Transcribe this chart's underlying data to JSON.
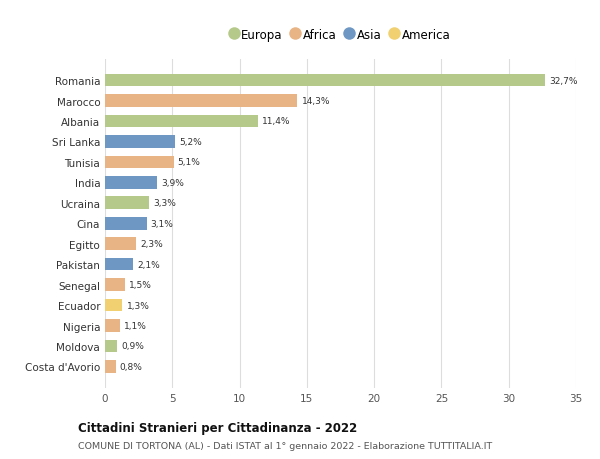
{
  "countries": [
    "Romania",
    "Marocco",
    "Albania",
    "Sri Lanka",
    "Tunisia",
    "India",
    "Ucraina",
    "Cina",
    "Egitto",
    "Pakistan",
    "Senegal",
    "Ecuador",
    "Nigeria",
    "Moldova",
    "Costa d'Avorio"
  ],
  "values": [
    32.7,
    14.3,
    11.4,
    5.2,
    5.1,
    3.9,
    3.3,
    3.1,
    2.3,
    2.1,
    1.5,
    1.3,
    1.1,
    0.9,
    0.8
  ],
  "labels": [
    "32,7%",
    "14,3%",
    "11,4%",
    "5,2%",
    "5,1%",
    "3,9%",
    "3,3%",
    "3,1%",
    "2,3%",
    "2,1%",
    "1,5%",
    "1,3%",
    "1,1%",
    "0,9%",
    "0,8%"
  ],
  "continents": [
    "Europa",
    "Africa",
    "Europa",
    "Asia",
    "Africa",
    "Asia",
    "Europa",
    "Asia",
    "Africa",
    "Asia",
    "Africa",
    "America",
    "Africa",
    "Europa",
    "Africa"
  ],
  "colors": {
    "Europa": "#b5c98a",
    "Africa": "#e8b485",
    "Asia": "#6e97c4",
    "America": "#f0d070"
  },
  "xlim": [
    0,
    35
  ],
  "xticks": [
    0,
    5,
    10,
    15,
    20,
    25,
    30,
    35
  ],
  "title": "Cittadini Stranieri per Cittadinanza - 2022",
  "subtitle": "COMUNE DI TORTONA (AL) - Dati ISTAT al 1° gennaio 2022 - Elaborazione TUTTITALIA.IT",
  "legend_order": [
    "Europa",
    "Africa",
    "Asia",
    "America"
  ],
  "background_color": "#ffffff",
  "grid_color": "#dddddd",
  "bar_height": 0.62
}
